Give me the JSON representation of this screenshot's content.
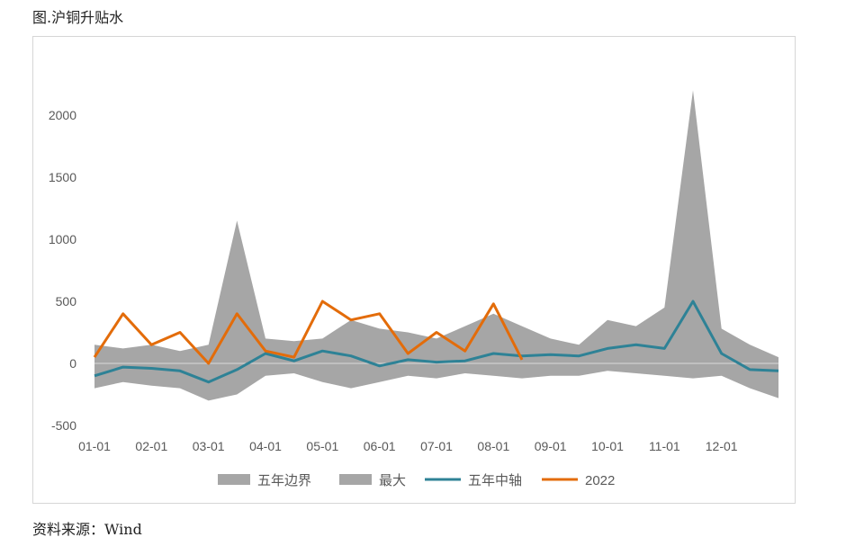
{
  "header": {
    "title": "图.沪铜升贴水"
  },
  "footer": {
    "source": "资料来源：Wind"
  },
  "colors": {
    "band": "#a6a6a6",
    "max": "#a6a6a6",
    "mid": "#2e8296",
    "current": "#e36c0a",
    "zero": "#d9d9d9",
    "text": "#595959"
  },
  "chart_data": {
    "type": "area",
    "title": "",
    "xlabel": "",
    "ylabel": "",
    "ylim": [
      -500,
      2500
    ],
    "yticks": [
      -500,
      0,
      500,
      1000,
      1500,
      2000
    ],
    "x_ticks": [
      "01-01",
      "02-01",
      "03-01",
      "04-01",
      "05-01",
      "06-01",
      "07-01",
      "08-01",
      "09-01",
      "10-01",
      "11-01",
      "12-01"
    ],
    "grid": false,
    "legend_position": "bottom",
    "legend": [
      "五年边界",
      "最大",
      "五年中轴",
      "2022"
    ],
    "x": [
      "01-01",
      "01-15",
      "02-01",
      "02-15",
      "03-01",
      "03-15",
      "04-01",
      "04-15",
      "05-01",
      "05-15",
      "06-01",
      "06-15",
      "07-01",
      "07-15",
      "08-01",
      "08-15",
      "09-01",
      "09-15",
      "10-01",
      "10-15",
      "11-01",
      "11-15",
      "12-01",
      "12-15",
      "12-31"
    ],
    "series": [
      {
        "name": "五年边界",
        "kind": "band_low",
        "values": [
          -200,
          -150,
          -180,
          -200,
          -300,
          -250,
          -100,
          -80,
          -150,
          -200,
          -150,
          -100,
          -120,
          -80,
          -100,
          -120,
          -100,
          -100,
          -60,
          -80,
          -100,
          -120,
          -100,
          -200,
          -280
        ]
      },
      {
        "name": "最大",
        "kind": "band_high",
        "values": [
          150,
          120,
          150,
          100,
          150,
          1150,
          200,
          180,
          200,
          350,
          280,
          250,
          200,
          300,
          400,
          300,
          200,
          150,
          350,
          300,
          450,
          2200,
          280,
          150,
          50
        ]
      },
      {
        "name": "五年中轴",
        "kind": "line",
        "values": [
          -100,
          -30,
          -40,
          -60,
          -150,
          -50,
          80,
          20,
          100,
          60,
          -20,
          30,
          10,
          20,
          80,
          60,
          70,
          60,
          120,
          150,
          120,
          500,
          80,
          -50,
          -60
        ]
      },
      {
        "name": "2022",
        "kind": "line",
        "values": [
          50,
          400,
          150,
          250,
          0,
          400,
          100,
          50,
          500,
          350,
          400,
          80,
          250,
          100,
          480,
          30,
          null,
          null,
          null,
          null,
          null,
          null,
          null,
          null,
          null
        ]
      }
    ]
  }
}
